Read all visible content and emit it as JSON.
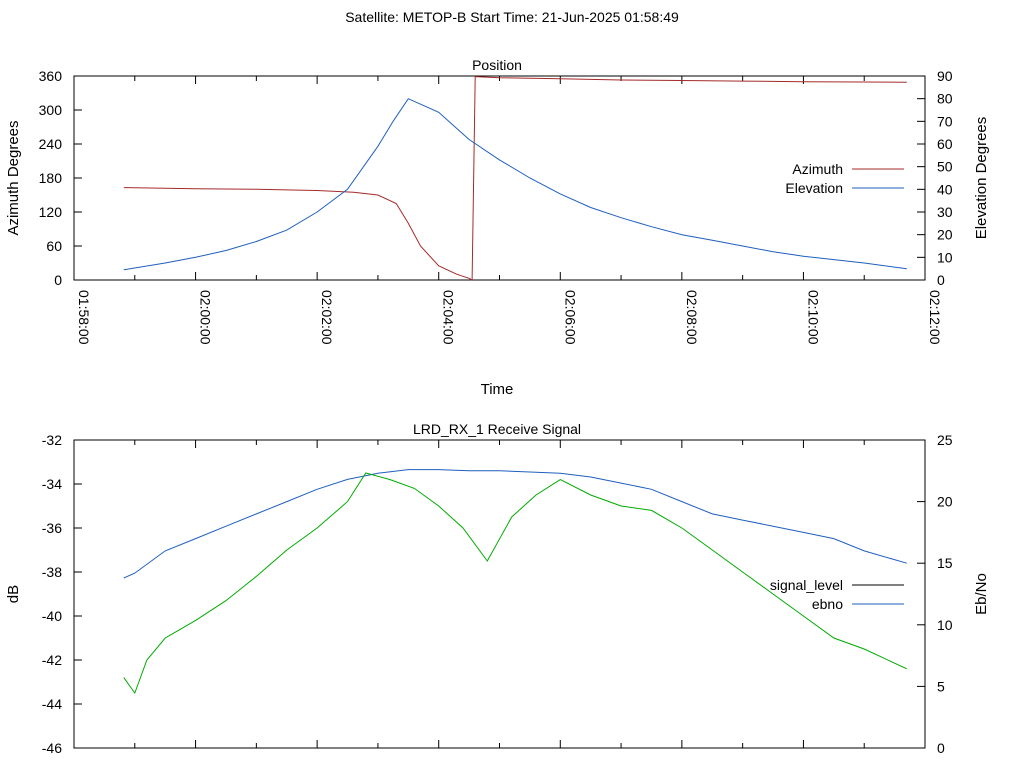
{
  "header": {
    "title": "Satellite: METOP-B    Start Time: 21-Jun-2025 01:58:49"
  },
  "chart_data": [
    {
      "type": "line",
      "title": "Position",
      "xlabel": "Time",
      "ylabel": "Azimuth Degrees",
      "y2label": "Elevation Degrees",
      "x_ticks": [
        "01:58:00",
        "02:00:00",
        "02:02:00",
        "02:04:00",
        "02:06:00",
        "02:08:00",
        "02:10:00",
        "02:12:00"
      ],
      "x_range_minutes": [
        0,
        14
      ],
      "ylim": [
        0,
        360
      ],
      "y_ticks": [
        0,
        60,
        120,
        180,
        240,
        300,
        360
      ],
      "y2lim": [
        0,
        90
      ],
      "y2_ticks": [
        0,
        10,
        20,
        30,
        40,
        50,
        60,
        70,
        80,
        90
      ],
      "legend_position": "right",
      "series": [
        {
          "name": "Azimuth",
          "axis": "y",
          "color": "#a52a2a",
          "x_minutes": [
            0.82,
            2,
            3,
            4,
            4.6,
            5.0,
            5.3,
            5.5,
            5.7,
            6.0,
            6.3,
            6.5,
            6.55,
            6.6,
            7,
            8,
            9,
            10,
            11,
            12,
            13.7
          ],
          "values": [
            163,
            161,
            160,
            158,
            155,
            150,
            135,
            100,
            60,
            25,
            10,
            3,
            0,
            359,
            357,
            355,
            353,
            352,
            351,
            350,
            349
          ]
        },
        {
          "name": "Elevation",
          "axis": "y2",
          "color": "#1f5fbf",
          "x_minutes": [
            0.82,
            1.5,
            2,
            2.5,
            3,
            3.5,
            4,
            4.5,
            5.0,
            5.25,
            5.5,
            6.0,
            6.5,
            7.0,
            7.5,
            8.0,
            8.5,
            9.0,
            9.5,
            10.0,
            10.5,
            11.0,
            11.5,
            12.0,
            12.5,
            13.0,
            13.7
          ],
          "values": [
            4.5,
            7.5,
            10,
            13,
            17,
            22,
            30,
            40,
            59,
            70,
            80,
            74,
            62,
            53,
            45,
            38,
            32,
            27.5,
            23.5,
            20,
            17.5,
            15,
            12.5,
            10.5,
            9,
            7.5,
            5
          ]
        }
      ]
    },
    {
      "type": "line",
      "title": "LRD_RX_1 Receive Signal",
      "ylabel": "dB",
      "y2label": "Eb/No",
      "ylim": [
        -46,
        -32
      ],
      "y_ticks": [
        -46,
        -44,
        -42,
        -40,
        -38,
        -36,
        -34,
        -32
      ],
      "y2lim": [
        0,
        25
      ],
      "y2_ticks": [
        0,
        5,
        10,
        15,
        20,
        25
      ],
      "legend_position": "right",
      "series": [
        {
          "name": "signal_level",
          "axis": "y",
          "color": "#000000",
          "x_minutes": [],
          "values": []
        },
        {
          "name": "ebno",
          "axis": "y2",
          "color": "#1f5fbf",
          "x_minutes": [
            0.82,
            1.0,
            1.5,
            2.0,
            2.5,
            3.0,
            3.5,
            4.0,
            4.5,
            5.0,
            5.5,
            6.0,
            6.5,
            7.0,
            7.5,
            8.0,
            8.5,
            9.0,
            9.5,
            10.0,
            10.5,
            11.0,
            11.5,
            12.0,
            12.5,
            13.0,
            13.7
          ],
          "values": [
            13.8,
            14.2,
            16.0,
            17.0,
            18.0,
            19.0,
            20.0,
            21.0,
            21.8,
            22.3,
            22.6,
            22.6,
            22.5,
            22.5,
            22.4,
            22.3,
            22.0,
            21.5,
            21.0,
            20.0,
            19.0,
            18.5,
            18.0,
            17.5,
            17.0,
            16.0,
            15.0
          ]
        },
        {
          "name": "",
          "axis": "y",
          "color": "#00aa00",
          "x_minutes": [
            0.82,
            1.0,
            1.2,
            1.5,
            2.0,
            2.5,
            3.0,
            3.5,
            4.0,
            4.5,
            4.8,
            5.2,
            5.6,
            6.0,
            6.4,
            6.8,
            7.2,
            7.6,
            8.0,
            8.5,
            9.0,
            9.5,
            10.0,
            10.5,
            11.0,
            11.5,
            12.0,
            12.5,
            13.0,
            13.7
          ],
          "values": [
            -42.8,
            -43.5,
            -42.0,
            -41.0,
            -40.2,
            -39.3,
            -38.2,
            -37.0,
            -36.0,
            -34.8,
            -33.5,
            -33.8,
            -34.2,
            -35.0,
            -36.0,
            -37.5,
            -35.5,
            -34.5,
            -33.8,
            -34.5,
            -35.0,
            -35.2,
            -36.0,
            -37.0,
            -38.0,
            -39.0,
            -40.0,
            -41.0,
            -41.5,
            -42.4
          ]
        }
      ]
    }
  ]
}
